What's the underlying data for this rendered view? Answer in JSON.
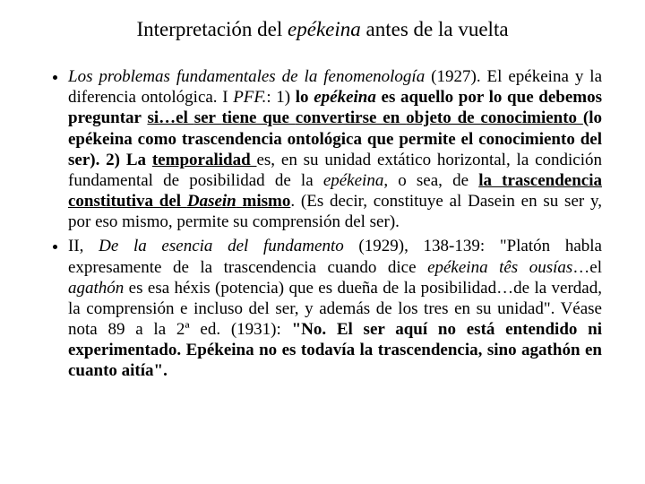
{
  "title": {
    "pre": "Interpretación del ",
    "term": "epékeina",
    "post": " antes de la vuelta"
  },
  "b1": {
    "workTitle": "Los problemas fundamentales de la fenomenología",
    "yearSentence": " (1927). El epékeina y la diferencia ontológica. I ",
    "pff": "PFF.",
    "colon1": ": 1) ",
    "loEpekeina": "lo ",
    "epekeinaWord": "epékeina",
    "esAquello": " es aquello por lo que debemos preguntar ",
    "siEl": "si…el ",
    "ser": "ser ",
    "tieneQue": "tiene que ",
    "convertirse": "convertirse en ",
    "objeto": "objeto de ",
    "conocimiento": "conocimiento ",
    "loEpekeinaComo": "(lo epékeina como trascendencia ontológica que permite el conocimiento del ser). 2) La ",
    "temporalidad": "temporalidad ",
    "esUnidad": "es, en su unidad extático  horizontal, la condición fundamental de posibilidad de la ",
    "epekeina2": "epékeina",
    "oSea": ", o sea, de ",
    "laTrasc": "la trascendencia constitutiva del ",
    "dasein": "Dasein",
    "mismo": " mismo",
    "esDecir": ". (Es decir, constituye al Dasein en su ser y, por eso mismo, permite su comprensión del ser)."
  },
  "b2": {
    "ii": "II, ",
    "work2": "De la esencia del fundamento ",
    "year2": "(1929)",
    "pages": ", 138-139: \"Platón habla expresamente de la trascendencia cuando dice ",
    "epTes": "epékeina tês ousías",
    "elAgathon": "…el ",
    "agathon": "agathón",
    "esEsa": " es esa héxis (potencia) que es dueña de la posibilidad…de la verdad, la comprensión e incluso del ser, y además de los tres en su unidad\". Véase nota 89 a la 2ª ed. (1931): ",
    "noElSer": "\"No. El ser aquí no está entendido ni experimentado. Epékeina no es todavía la trascendencia, sino agathón en cuanto aitía\"."
  }
}
